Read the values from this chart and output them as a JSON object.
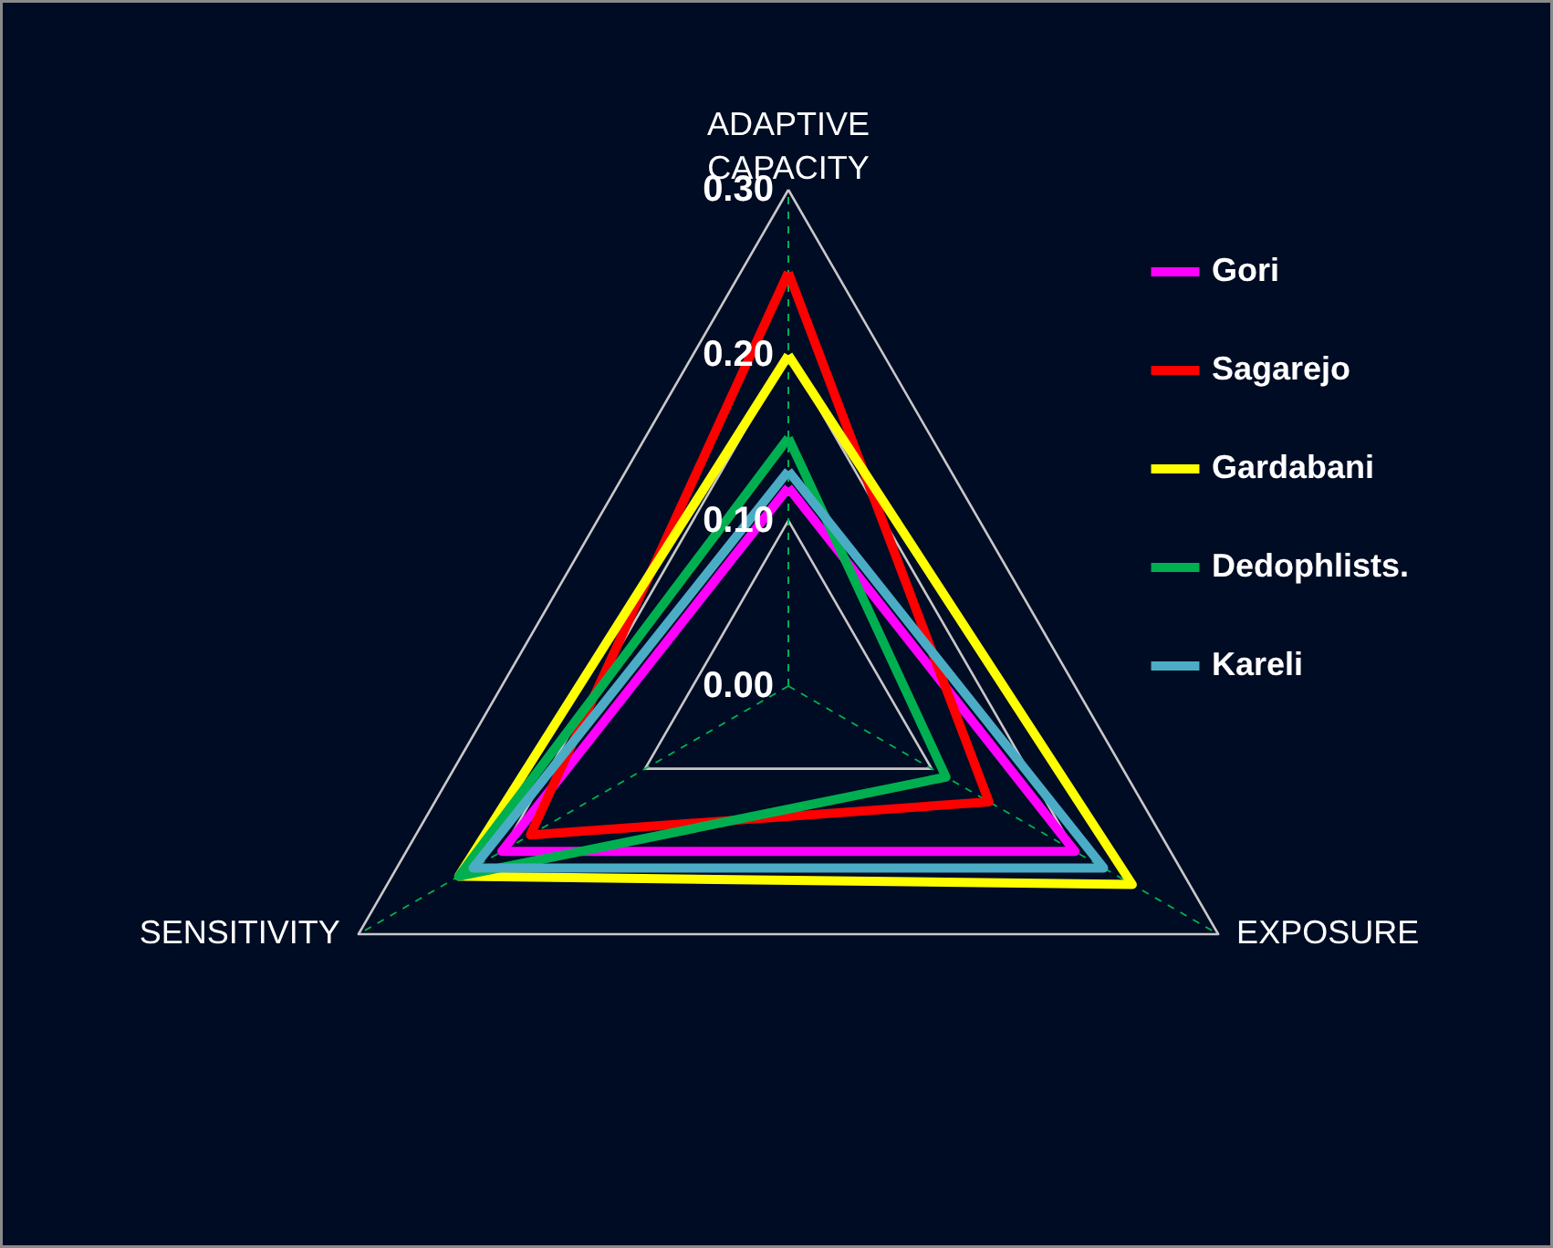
{
  "chart_data": {
    "type": "radar",
    "categories": [
      "ADAPTIVE CAPACITY",
      "EXPOSURE",
      "SENSITIVITY"
    ],
    "series": [
      {
        "name": "Gori",
        "color": "#ff00ff",
        "values": [
          0.12,
          0.2,
          0.2
        ]
      },
      {
        "name": "Sagarejo",
        "color": "#ff0000",
        "values": [
          0.25,
          0.14,
          0.18
        ]
      },
      {
        "name": "Gardabani",
        "color": "#ffff00",
        "values": [
          0.2,
          0.24,
          0.23
        ]
      },
      {
        "name": "Dedophlists.",
        "color": "#00b050",
        "values": [
          0.15,
          0.11,
          0.23
        ]
      },
      {
        "name": "Kareli",
        "color": "#4bacc6",
        "values": [
          0.13,
          0.22,
          0.22
        ]
      }
    ],
    "ylim": [
      0,
      0.3
    ],
    "yticks": [
      {
        "value": 0,
        "label": "0.00"
      },
      {
        "value": 0.1,
        "label": "0.10"
      },
      {
        "value": 0.2,
        "label": "0.20"
      },
      {
        "value": 0.3,
        "label": "0.30"
      }
    ],
    "grid": true,
    "legend": "right",
    "marker": "none",
    "line_style": "solid"
  }
}
